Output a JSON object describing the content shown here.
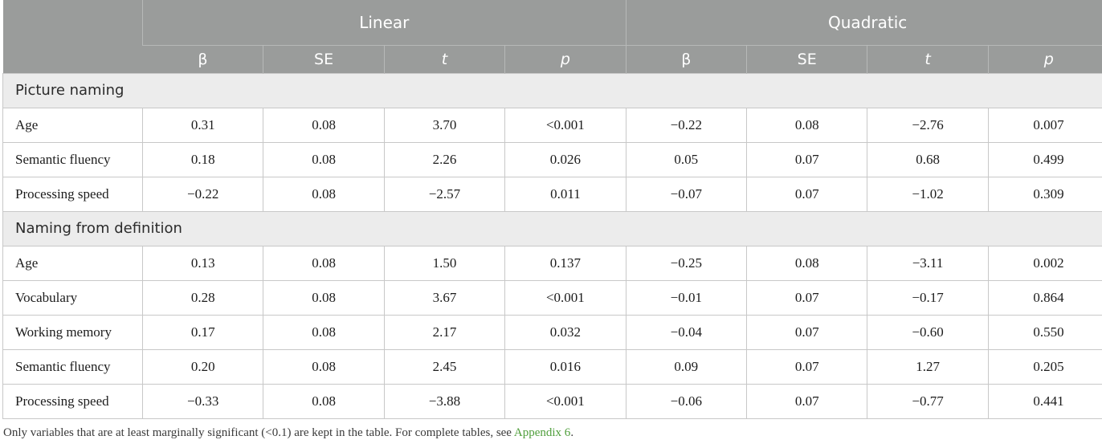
{
  "header": {
    "groups": [
      "Linear",
      "Quadratic"
    ],
    "subcols": [
      "β",
      "SE",
      "t",
      "p",
      "β",
      "SE",
      "t",
      "p"
    ]
  },
  "sections": [
    {
      "title": "Picture naming",
      "rows": [
        {
          "label": "Age",
          "values": [
            "0.31",
            "0.08",
            "3.70",
            "<0.001",
            "−0.22",
            "0.08",
            "−2.76",
            "0.007"
          ]
        },
        {
          "label": "Semantic fluency",
          "values": [
            "0.18",
            "0.08",
            "2.26",
            "0.026",
            "0.05",
            "0.07",
            "0.68",
            "0.499"
          ]
        },
        {
          "label": "Processing speed",
          "values": [
            "−0.22",
            "0.08",
            "−2.57",
            "0.011",
            "−0.07",
            "0.07",
            "−1.02",
            "0.309"
          ]
        }
      ]
    },
    {
      "title": "Naming from definition",
      "rows": [
        {
          "label": "Age",
          "values": [
            "0.13",
            "0.08",
            "1.50",
            "0.137",
            "−0.25",
            "0.08",
            "−3.11",
            "0.002"
          ]
        },
        {
          "label": "Vocabulary",
          "values": [
            "0.28",
            "0.08",
            "3.67",
            "<0.001",
            "−0.01",
            "0.07",
            "−0.17",
            "0.864"
          ]
        },
        {
          "label": "Working memory",
          "values": [
            "0.17",
            "0.08",
            "2.17",
            "0.032",
            "−0.04",
            "0.07",
            "−0.60",
            "0.550"
          ]
        },
        {
          "label": "Semantic fluency",
          "values": [
            "0.20",
            "0.08",
            "2.45",
            "0.016",
            "0.09",
            "0.07",
            "1.27",
            "0.205"
          ]
        },
        {
          "label": "Processing speed",
          "values": [
            "−0.33",
            "0.08",
            "−3.88",
            "<0.001",
            "−0.06",
            "0.07",
            "−0.77",
            "0.441"
          ]
        }
      ]
    }
  ],
  "footnote": {
    "text": "Only variables that are at least marginally significant (<0.1) are kept in the table. For complete tables, see ",
    "link": "Appendix 6",
    "end": "."
  },
  "colors": {
    "header_bg": "#9a9c9b",
    "section_bg": "#ececec",
    "link": "#4f9e3b"
  }
}
